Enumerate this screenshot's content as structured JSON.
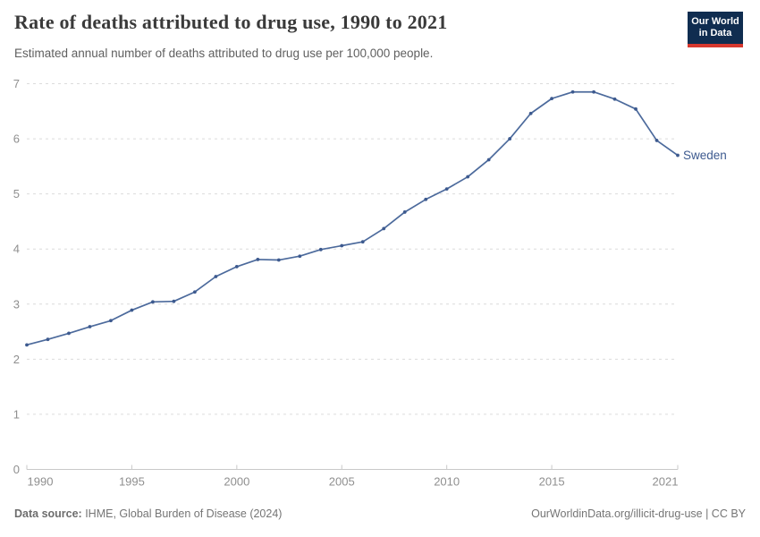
{
  "header": {
    "title": "Rate of deaths attributed to drug use, 1990 to 2021",
    "subtitle": "Estimated annual number of deaths attributed to drug use per 100,000 people.",
    "logo": {
      "line1": "Our World",
      "line2": "in Data",
      "bg_color": "#102d50",
      "accent_color": "#d7382e"
    }
  },
  "chart_data": {
    "type": "line",
    "title": "Rate of deaths attributed to drug use, 1990 to 2021",
    "xlabel": "",
    "ylabel": "",
    "xlim": [
      1990,
      2021
    ],
    "ylim": [
      0,
      7
    ],
    "xticks": [
      1990,
      1995,
      2000,
      2005,
      2010,
      2015,
      2021
    ],
    "yticks": [
      0,
      1,
      2,
      3,
      4,
      5,
      6,
      7
    ],
    "grid": "horizontal-dashed",
    "legend_position": "end-of-line-label",
    "series": [
      {
        "name": "Sweden",
        "color": "#4c6a9c",
        "marker_color": "#3d5a8f",
        "x": [
          1990,
          1991,
          1992,
          1993,
          1994,
          1995,
          1996,
          1997,
          1998,
          1999,
          2000,
          2001,
          2002,
          2003,
          2004,
          2005,
          2006,
          2007,
          2008,
          2009,
          2010,
          2011,
          2012,
          2013,
          2014,
          2015,
          2016,
          2017,
          2018,
          2019,
          2020,
          2021
        ],
        "values": [
          2.26,
          2.36,
          2.47,
          2.59,
          2.7,
          2.89,
          3.04,
          3.05,
          3.22,
          3.5,
          3.68,
          3.81,
          3.8,
          3.87,
          3.99,
          4.06,
          4.13,
          4.37,
          4.67,
          4.9,
          5.09,
          5.31,
          5.62,
          6.0,
          6.46,
          6.73,
          6.85,
          6.85,
          6.72,
          6.54,
          5.97,
          5.7
        ]
      }
    ],
    "axis_colors": {
      "tick_label": "#8f8f8f",
      "grid": "#dcdcdc",
      "baseline": "#c9c9c9"
    }
  },
  "footer": {
    "source_label": "Data source:",
    "source_text": " IHME, Global Burden of Disease (2024)",
    "rights_text": "OurWorldinData.org/illicit-drug-use | CC BY"
  }
}
